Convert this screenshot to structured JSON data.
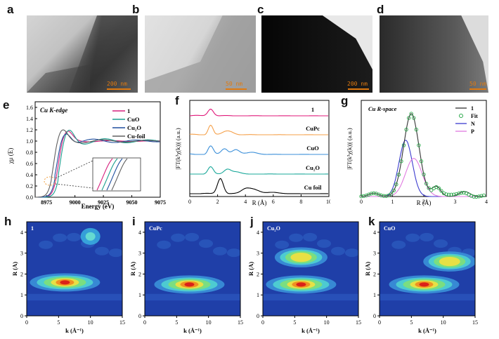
{
  "tem": {
    "a": {
      "letter": "a",
      "scale": "200 nm"
    },
    "b": {
      "letter": "b",
      "scale": "50 nm"
    },
    "c": {
      "letter": "c",
      "scale": "200 nm"
    },
    "d": {
      "letter": "d",
      "scale": "50 nm"
    }
  },
  "panel_e": {
    "letter": "e",
    "title": "Cu K-edge",
    "xlabel": "Energy (eV)",
    "ylabel": "χμ (E)",
    "xticks": [
      "8975",
      "9000",
      "9025",
      "9050",
      "9075"
    ],
    "yticks": [
      "0.0",
      "0.2",
      "0.4",
      "0.6",
      "0.8",
      "1.0",
      "1.2",
      "1.4",
      "1.6"
    ],
    "legend": [
      "1",
      "CuO",
      "Cu2O",
      "Cu-foil"
    ],
    "colors": [
      "#d6217e",
      "#1a9e8f",
      "#1f4f9e",
      "#606060"
    ]
  },
  "panel_f": {
    "letter": "f",
    "xlabel": "R (Å)",
    "ylabel": "|FT(k³χ(k))| (a.u.)",
    "xticks": [
      "0",
      "2",
      "4",
      "6",
      "8",
      "10"
    ],
    "labels": [
      "1",
      "CuPc",
      "CuO",
      "Cu2O",
      "Cu foil"
    ],
    "colors": [
      "#e0197a",
      "#f5a04a",
      "#3b8fd9",
      "#1aa89a",
      "#000000"
    ]
  },
  "panel_g": {
    "letter": "g",
    "title": "Cu R-space",
    "xlabel": "R (Å)",
    "ylabel": "|FT(k³χ(k))| (a.u.)",
    "xticks": [
      "0",
      "1",
      "2",
      "3",
      "4"
    ],
    "legend": [
      "1",
      "Fit",
      "N",
      "P"
    ],
    "colors": [
      "#333333",
      "#2aa84a",
      "#3c3ccf",
      "#e07ae0"
    ]
  },
  "wt": [
    {
      "letter": "h",
      "label": "1",
      "peaks": [
        {
          "k": 6,
          "r": 1.6,
          "amp": 1.0
        }
      ]
    },
    {
      "letter": "i",
      "label": "CuPc",
      "peaks": [
        {
          "k": 7,
          "r": 1.5,
          "amp": 1.0
        }
      ]
    },
    {
      "letter": "j",
      "label": "Cu2O",
      "peaks": [
        {
          "k": 6,
          "r": 1.5,
          "amp": 1.0
        },
        {
          "k": 6,
          "r": 2.8,
          "amp": 0.6
        }
      ]
    },
    {
      "letter": "k",
      "label": "CuO",
      "peaks": [
        {
          "k": 7,
          "r": 1.5,
          "amp": 1.0
        },
        {
          "k": 11,
          "r": 2.6,
          "amp": 0.55
        }
      ]
    }
  ],
  "wt_axes": {
    "xlabel": "k (Å⁻¹)",
    "ylabel": "R (Å)",
    "xticks": [
      "0",
      "5",
      "10",
      "15"
    ],
    "yticks": [
      "0",
      "1",
      "2",
      "3",
      "4"
    ]
  }
}
